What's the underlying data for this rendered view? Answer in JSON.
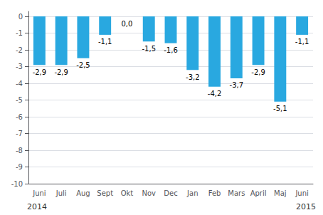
{
  "chart_data": {
    "type": "bar",
    "categories": [
      "Juni",
      "Juli",
      "Aug",
      "Sept",
      "Okt",
      "Nov",
      "Dec",
      "Jan",
      "Feb",
      "Mars",
      "April",
      "Maj",
      "Juni"
    ],
    "values": [
      -2.9,
      -2.9,
      -2.5,
      -1.1,
      0.0,
      -1.5,
      -1.6,
      -3.2,
      -4.2,
      -3.7,
      -2.9,
      -5.1,
      -1.1
    ],
    "value_labels": [
      "-2,9",
      "-2,9",
      "-2,5",
      "-1,1",
      "0,0",
      "-1,5",
      "-1,6",
      "-3,2",
      "-4,2",
      "-3,7",
      "-2,9",
      "-5,1",
      "-1,1"
    ],
    "color": "#29a8e0",
    "ylim": [
      -10,
      0.3
    ],
    "yticks": [
      0,
      -1,
      -2,
      -3,
      -4,
      -5,
      -6,
      -7,
      -8,
      -9,
      -10
    ],
    "grid": true,
    "data_labels": true,
    "annotations": [
      "2014",
      "2015"
    ]
  }
}
